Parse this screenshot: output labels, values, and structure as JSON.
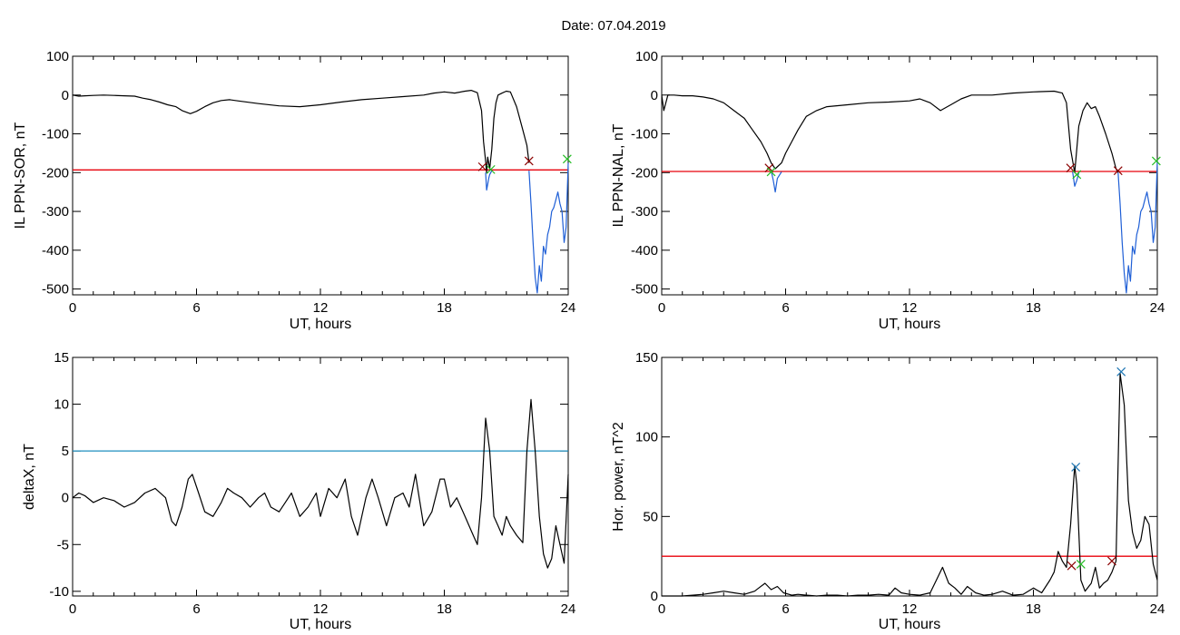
{
  "figure": {
    "title": "Date:  07.04.2019"
  },
  "chart_data": [
    {
      "type": "line",
      "ylabel": "IL PPN-SOR, nT",
      "xlabel": "UT, hours",
      "xlim": [
        0,
        24
      ],
      "ylim": [
        -515,
        100
      ],
      "xticks": [
        0,
        6,
        12,
        18,
        24
      ],
      "yticks": [
        100,
        0,
        -100,
        -200,
        -300,
        -400,
        -500
      ],
      "threshold": {
        "value": -193,
        "color": "#e8000b"
      },
      "series": [
        {
          "color": "#000000",
          "x": [
            0,
            0.3,
            0.6,
            1.0,
            1.5,
            2.0,
            2.5,
            3.0,
            3.4,
            3.8,
            4.2,
            4.6,
            5.0,
            5.3,
            5.7,
            6.0,
            6.4,
            6.8,
            7.2,
            7.6,
            8.0,
            9.0,
            10.0,
            11.0,
            12.0,
            13.0,
            14.0,
            15.0,
            16.0,
            17.0,
            17.5,
            18.0,
            18.5,
            19.0,
            19.3,
            19.6,
            19.8,
            19.9,
            20.0,
            20.05,
            20.1,
            20.2,
            20.3,
            20.4,
            20.5,
            20.6,
            20.8,
            21.0,
            21.2,
            21.5,
            21.8,
            22.0,
            22.1
          ],
          "y": [
            0,
            -3,
            -2,
            -1,
            0,
            -1,
            -2,
            -3,
            -8,
            -12,
            -18,
            -25,
            -30,
            -40,
            -48,
            -42,
            -30,
            -20,
            -14,
            -12,
            -15,
            -22,
            -28,
            -30,
            -25,
            -18,
            -12,
            -8,
            -4,
            0,
            5,
            8,
            5,
            10,
            12,
            6,
            -40,
            -120,
            -170,
            -200,
            -160,
            -190,
            -140,
            -60,
            -20,
            0,
            5,
            10,
            8,
            -30,
            -90,
            -130,
            -175
          ]
        },
        {
          "color": "#1f5fd6",
          "x": [
            20.0,
            20.05,
            20.1,
            20.15,
            20.2,
            20.3
          ],
          "y": [
            -200,
            -245,
            -230,
            -215,
            -205,
            -195
          ]
        },
        {
          "color": "#1f5fd6",
          "x": [
            22.1,
            22.2,
            22.3,
            22.4,
            22.5,
            22.6,
            22.7,
            22.8,
            22.9,
            23.0,
            23.1,
            23.2,
            23.3,
            23.4,
            23.5,
            23.6,
            23.7,
            23.8,
            23.9,
            24.0
          ],
          "y": [
            -195,
            -280,
            -380,
            -470,
            -510,
            -440,
            -480,
            -390,
            -410,
            -360,
            -340,
            -300,
            -290,
            -270,
            -250,
            -280,
            -300,
            -380,
            -340,
            -175
          ]
        }
      ],
      "markers": [
        {
          "x": 19.85,
          "y": -185,
          "color": "#8b0000"
        },
        {
          "x": 20.25,
          "y": -192,
          "color": "#22bb22"
        },
        {
          "x": 22.1,
          "y": -170,
          "color": "#8b0000"
        },
        {
          "x": 23.95,
          "y": -165,
          "color": "#22bb22"
        }
      ]
    },
    {
      "type": "line",
      "ylabel": "IL PPN-NAL, nT",
      "xlabel": "UT, hours",
      "xlim": [
        0,
        24
      ],
      "ylim": [
        -515,
        100
      ],
      "xticks": [
        0,
        6,
        12,
        18,
        24
      ],
      "yticks": [
        100,
        0,
        -100,
        -200,
        -300,
        -400,
        -500
      ],
      "threshold": {
        "value": -197,
        "color": "#e8000b"
      },
      "series": [
        {
          "color": "#000000",
          "x": [
            0,
            0.1,
            0.3,
            0.6,
            1.0,
            1.5,
            2.0,
            2.5,
            3.0,
            3.5,
            4.0,
            4.4,
            4.8,
            5.1,
            5.3,
            5.5,
            5.8,
            6.0,
            6.3,
            6.6,
            7.0,
            7.5,
            8.0,
            9.0,
            10.0,
            11.0,
            12.0,
            12.5,
            13.0,
            13.5,
            14.0,
            14.5,
            15.0,
            16.0,
            17.0,
            18.0,
            19.0,
            19.4,
            19.6,
            19.8,
            20.0,
            20.2,
            20.4,
            20.6,
            20.8,
            21.0,
            21.2,
            21.5,
            21.8,
            22.0,
            22.1
          ],
          "y": [
            0,
            -40,
            0,
            0,
            -2,
            -2,
            -5,
            -10,
            -20,
            -40,
            -60,
            -90,
            -120,
            -150,
            -175,
            -190,
            -175,
            -150,
            -120,
            -90,
            -55,
            -40,
            -30,
            -25,
            -20,
            -18,
            -15,
            -10,
            -20,
            -40,
            -25,
            -10,
            0,
            0,
            5,
            8,
            10,
            5,
            -20,
            -140,
            -200,
            -80,
            -40,
            -20,
            -35,
            -30,
            -55,
            -100,
            -150,
            -190,
            -200
          ]
        },
        {
          "color": "#1f5fd6",
          "x": [
            5.3,
            5.4,
            5.5,
            5.6,
            5.8
          ],
          "y": [
            -195,
            -220,
            -250,
            -215,
            -198
          ]
        },
        {
          "color": "#1f5fd6",
          "x": [
            19.9,
            20.0,
            20.1,
            20.2
          ],
          "y": [
            -198,
            -235,
            -220,
            -200
          ]
        },
        {
          "color": "#1f5fd6",
          "x": [
            22.1,
            22.2,
            22.3,
            22.4,
            22.5,
            22.6,
            22.7,
            22.8,
            22.9,
            23.0,
            23.1,
            23.2,
            23.3,
            23.4,
            23.5,
            23.6,
            23.7,
            23.8,
            23.9,
            24.0
          ],
          "y": [
            -200,
            -280,
            -380,
            -460,
            -510,
            -440,
            -480,
            -390,
            -410,
            -360,
            -340,
            -300,
            -290,
            -270,
            -250,
            -280,
            -300,
            -380,
            -340,
            -170
          ]
        }
      ],
      "markers": [
        {
          "x": 5.2,
          "y": -188,
          "color": "#8b0000"
        },
        {
          "x": 5.3,
          "y": -198,
          "color": "#22bb22"
        },
        {
          "x": 19.8,
          "y": -188,
          "color": "#8b0000"
        },
        {
          "x": 20.1,
          "y": -205,
          "color": "#22bb22"
        },
        {
          "x": 22.1,
          "y": -195,
          "color": "#8b0000"
        },
        {
          "x": 23.95,
          "y": -170,
          "color": "#22bb22"
        }
      ]
    },
    {
      "type": "line",
      "ylabel": "deltaX, nT",
      "xlabel": "UT, hours",
      "xlim": [
        0,
        24
      ],
      "ylim": [
        -10.5,
        15
      ],
      "xticks": [
        0,
        6,
        12,
        18,
        24
      ],
      "yticks": [
        15,
        10,
        5,
        0,
        -5,
        -10
      ],
      "threshold": {
        "value": 5,
        "color": "#1f8fbf"
      },
      "series": [
        {
          "color": "#000000",
          "x": [
            0,
            0.3,
            0.6,
            1.0,
            1.5,
            2.0,
            2.5,
            3.0,
            3.5,
            4.0,
            4.5,
            4.8,
            5.0,
            5.3,
            5.6,
            5.8,
            6.1,
            6.4,
            6.8,
            7.2,
            7.5,
            7.8,
            8.2,
            8.6,
            9.0,
            9.3,
            9.6,
            10.0,
            10.3,
            10.6,
            11.0,
            11.4,
            11.8,
            12.0,
            12.4,
            12.8,
            13.2,
            13.5,
            13.8,
            14.2,
            14.5,
            14.8,
            15.2,
            15.6,
            16.0,
            16.3,
            16.6,
            17.0,
            17.4,
            17.8,
            18.0,
            18.3,
            18.6,
            19.0,
            19.4,
            19.6,
            19.8,
            20.0,
            20.2,
            20.4,
            20.6,
            20.8,
            21.0,
            21.2,
            21.5,
            21.8,
            22.0,
            22.2,
            22.4,
            22.6,
            22.8,
            23.0,
            23.2,
            23.4,
            23.6,
            23.8,
            24.0
          ],
          "y": [
            0,
            0.5,
            0.2,
            -0.5,
            0,
            -0.3,
            -1,
            -0.5,
            0.5,
            1,
            0,
            -2.5,
            -3,
            -1,
            2,
            2.5,
            0.5,
            -1.5,
            -2,
            -0.5,
            1,
            0.5,
            0,
            -1,
            0,
            0.5,
            -1,
            -1.5,
            -0.5,
            0.5,
            -2,
            -1,
            0.5,
            -2,
            1,
            0,
            2,
            -2,
            -4,
            0,
            2,
            0,
            -3,
            0,
            0.5,
            -1,
            2.5,
            -3,
            -1.5,
            2,
            2,
            -1,
            0,
            -2,
            -4,
            -5,
            0,
            8.5,
            5,
            -2,
            -3,
            -4,
            -2,
            -3,
            -4,
            -4.8,
            5,
            10.5,
            5,
            -2,
            -6,
            -7.5,
            -6.5,
            -3,
            -5,
            -7,
            2.5
          ]
        }
      ],
      "markers": []
    },
    {
      "type": "line",
      "ylabel": "Hor. power, nT^2",
      "xlabel": "UT, hours",
      "xlim": [
        0,
        24
      ],
      "ylim": [
        0,
        150
      ],
      "xticks": [
        0,
        6,
        12,
        18,
        24
      ],
      "yticks": [
        150,
        100,
        50,
        0
      ],
      "threshold": {
        "value": 25,
        "color": "#e8000b"
      },
      "series": [
        {
          "color": "#000000",
          "x": [
            0,
            0.5,
            1.0,
            1.5,
            2.0,
            2.5,
            3.0,
            3.5,
            4.0,
            4.5,
            4.7,
            5.0,
            5.3,
            5.6,
            5.9,
            6.3,
            6.6,
            7.0,
            7.5,
            8.0,
            8.5,
            9.0,
            9.5,
            10.0,
            10.5,
            11.0,
            11.3,
            11.6,
            12.0,
            12.5,
            13.0,
            13.3,
            13.6,
            13.9,
            14.2,
            14.5,
            14.8,
            15.2,
            15.6,
            16.0,
            16.5,
            17.0,
            17.5,
            18.0,
            18.4,
            18.8,
            19.0,
            19.2,
            19.4,
            19.6,
            19.8,
            20.0,
            20.1,
            20.3,
            20.5,
            20.8,
            21.0,
            21.2,
            21.4,
            21.6,
            21.8,
            22.0,
            22.2,
            22.4,
            22.6,
            22.8,
            23.0,
            23.2,
            23.4,
            23.6,
            23.8,
            24.0
          ],
          "y": [
            0,
            0,
            0,
            0.5,
            1,
            2,
            3,
            2,
            1,
            3,
            5,
            8,
            4,
            6,
            2,
            0.5,
            1,
            0.5,
            0,
            0.5,
            0.5,
            0,
            0.5,
            0.5,
            1,
            0.5,
            5,
            2,
            1,
            0.5,
            2,
            10,
            18,
            8,
            5,
            1,
            6,
            2,
            0.5,
            1,
            3,
            0.5,
            1,
            5,
            2,
            10,
            15,
            28,
            22,
            18,
            45,
            82,
            70,
            10,
            3,
            8,
            18,
            5,
            8,
            10,
            15,
            22,
            140,
            120,
            60,
            40,
            30,
            35,
            50,
            45,
            20,
            10
          ]
        }
      ],
      "markers": [
        {
          "x": 20.05,
          "y": 81,
          "color": "#1f77b4"
        },
        {
          "x": 22.25,
          "y": 141,
          "color": "#1f77b4"
        },
        {
          "x": 19.85,
          "y": 19,
          "color": "#8b0000"
        },
        {
          "x": 20.3,
          "y": 20,
          "color": "#22bb22"
        },
        {
          "x": 21.8,
          "y": 22,
          "color": "#8b0000"
        }
      ]
    }
  ]
}
